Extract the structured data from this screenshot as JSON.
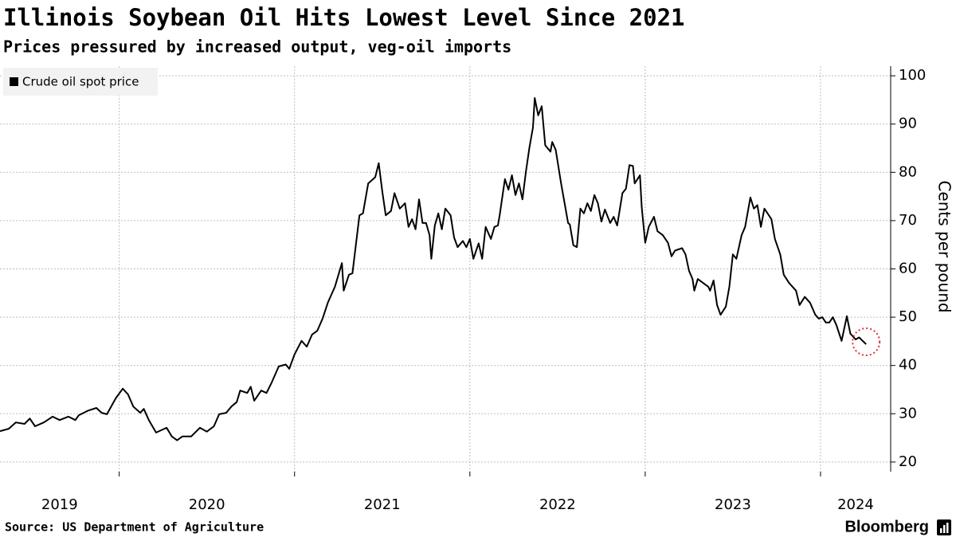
{
  "chart_data": {
    "type": "line",
    "title": "Illinois Soybean Oil Hits Lowest Level Since 2021",
    "subtitle": "Prices pressured by increased output, veg-oil imports",
    "y_axis_label": "Cents per pound",
    "source": "Source: US Department of Agriculture",
    "brand": "Bloomberg",
    "legend": "top-left",
    "grid": true,
    "y_axis_side": "right",
    "xlim": [
      2019.32,
      2024.4
    ],
    "xticks": [
      2019,
      2020,
      2021,
      2022,
      2023,
      2024
    ],
    "ylim": [
      18,
      102
    ],
    "yticks": [
      20,
      30,
      40,
      50,
      60,
      70,
      80,
      90,
      100
    ],
    "x": [
      2019.32,
      2019.37,
      2019.41,
      2019.46,
      2019.49,
      2019.52,
      2019.57,
      2019.62,
      2019.66,
      2019.71,
      2019.75,
      2019.77,
      2019.82,
      2019.87,
      2019.9,
      2019.93,
      2019.98,
      2020.02,
      2020.05,
      2020.08,
      2020.12,
      2020.14,
      2020.17,
      2020.21,
      2020.24,
      2020.27,
      2020.3,
      2020.33,
      2020.36,
      2020.41,
      2020.46,
      2020.5,
      2020.54,
      2020.57,
      2020.61,
      2020.64,
      2020.67,
      2020.69,
      2020.73,
      2020.75,
      2020.77,
      2020.81,
      2020.84,
      2020.87,
      2020.91,
      2020.95,
      2020.97,
      2021.0,
      2021.04,
      2021.07,
      2021.1,
      2021.13,
      2021.16,
      2021.19,
      2021.23,
      2021.27,
      2021.28,
      2021.31,
      2021.33,
      2021.37,
      2021.39,
      2021.42,
      2021.46,
      2021.48,
      2021.5,
      2021.52,
      2021.55,
      2021.57,
      2021.6,
      2021.63,
      2021.65,
      2021.67,
      2021.69,
      2021.71,
      2021.73,
      2021.75,
      2021.77,
      2021.78,
      2021.8,
      2021.82,
      2021.84,
      2021.86,
      2021.89,
      2021.91,
      2021.93,
      2021.96,
      2021.98,
      2022.0,
      2022.02,
      2022.05,
      2022.07,
      2022.09,
      2022.12,
      2022.14,
      2022.16,
      2022.17,
      2022.2,
      2022.22,
      2022.24,
      2022.26,
      2022.28,
      2022.3,
      2022.32,
      2022.34,
      2022.36,
      2022.37,
      2022.39,
      2022.41,
      2022.43,
      2022.46,
      2022.47,
      2022.49,
      2022.52,
      2022.54,
      2022.56,
      2022.57,
      2022.59,
      2022.61,
      2022.63,
      2022.65,
      2022.67,
      2022.69,
      2022.71,
      2022.73,
      2022.75,
      2022.77,
      2022.8,
      2022.82,
      2022.84,
      2022.87,
      2022.89,
      2022.91,
      2022.93,
      2022.94,
      2022.97,
      2022.98,
      2023.0,
      2023.02,
      2023.05,
      2023.07,
      2023.1,
      2023.13,
      2023.15,
      2023.17,
      2023.21,
      2023.23,
      2023.25,
      2023.27,
      2023.28,
      2023.3,
      2023.33,
      2023.36,
      2023.37,
      2023.39,
      2023.41,
      2023.43,
      2023.46,
      2023.48,
      2023.5,
      2023.52,
      2023.55,
      2023.57,
      2023.6,
      2023.62,
      2023.64,
      2023.66,
      2023.68,
      2023.72,
      2023.74,
      2023.77,
      2023.79,
      2023.82,
      2023.86,
      2023.88,
      2023.91,
      2023.94,
      2023.97,
      2023.99,
      2024.01,
      2024.03,
      2024.05,
      2024.07,
      2024.09,
      2024.12,
      2024.15,
      2024.17,
      2024.2,
      2024.22,
      2024.24,
      2024.26
    ],
    "series": [
      {
        "name": "Crude oil spot price",
        "color": "#000000",
        "values": [
          26.4,
          26.9,
          28.2,
          27.9,
          29.0,
          27.4,
          28.2,
          29.4,
          28.7,
          29.4,
          28.7,
          29.7,
          30.6,
          31.2,
          30.2,
          29.9,
          33.2,
          35.2,
          34.0,
          31.5,
          30.2,
          31.0,
          28.6,
          26.1,
          26.6,
          27.1,
          25.3,
          24.5,
          25.3,
          25.3,
          27.1,
          26.3,
          27.4,
          29.9,
          30.2,
          31.5,
          32.4,
          34.8,
          34.3,
          35.6,
          32.7,
          34.8,
          34.3,
          36.5,
          39.8,
          40.2,
          39.3,
          42.3,
          45.1,
          43.9,
          46.4,
          47.2,
          49.7,
          53.0,
          56.3,
          61.2,
          55.5,
          58.8,
          59.1,
          71.1,
          71.5,
          77.7,
          79.0,
          81.9,
          76.1,
          71.1,
          72.0,
          75.7,
          72.5,
          73.6,
          68.7,
          70.3,
          68.2,
          74.4,
          69.5,
          69.5,
          67.0,
          62.1,
          69.0,
          71.5,
          68.2,
          72.5,
          71.1,
          66.5,
          64.5,
          65.8,
          64.5,
          66.2,
          62.1,
          65.3,
          62.1,
          68.7,
          66.2,
          68.7,
          69.0,
          71.1,
          78.6,
          76.4,
          79.4,
          75.3,
          77.7,
          74.4,
          80.2,
          85.2,
          89.3,
          95.4,
          91.8,
          93.7,
          85.6,
          84.3,
          86.3,
          84.6,
          77.7,
          73.6,
          69.5,
          69.2,
          64.9,
          64.5,
          72.5,
          71.5,
          73.6,
          72.0,
          75.3,
          73.6,
          69.8,
          72.3,
          69.5,
          70.8,
          69.0,
          75.7,
          76.6,
          81.5,
          81.3,
          77.7,
          79.4,
          72.8,
          65.4,
          68.7,
          70.8,
          67.8,
          67.0,
          65.4,
          62.6,
          63.8,
          64.3,
          63.0,
          59.6,
          57.9,
          55.5,
          57.9,
          57.1,
          56.3,
          55.5,
          57.6,
          52.5,
          50.5,
          52.2,
          56.3,
          63.0,
          62.1,
          67.0,
          68.7,
          74.8,
          72.5,
          73.2,
          68.7,
          72.5,
          70.3,
          66.2,
          63.0,
          58.8,
          57.1,
          55.5,
          52.5,
          54.2,
          53.0,
          50.5,
          49.7,
          50.0,
          48.9,
          48.9,
          50.0,
          48.4,
          45.1,
          50.2,
          46.6,
          45.4,
          45.8,
          45.1,
          44.4
        ]
      }
    ]
  }
}
